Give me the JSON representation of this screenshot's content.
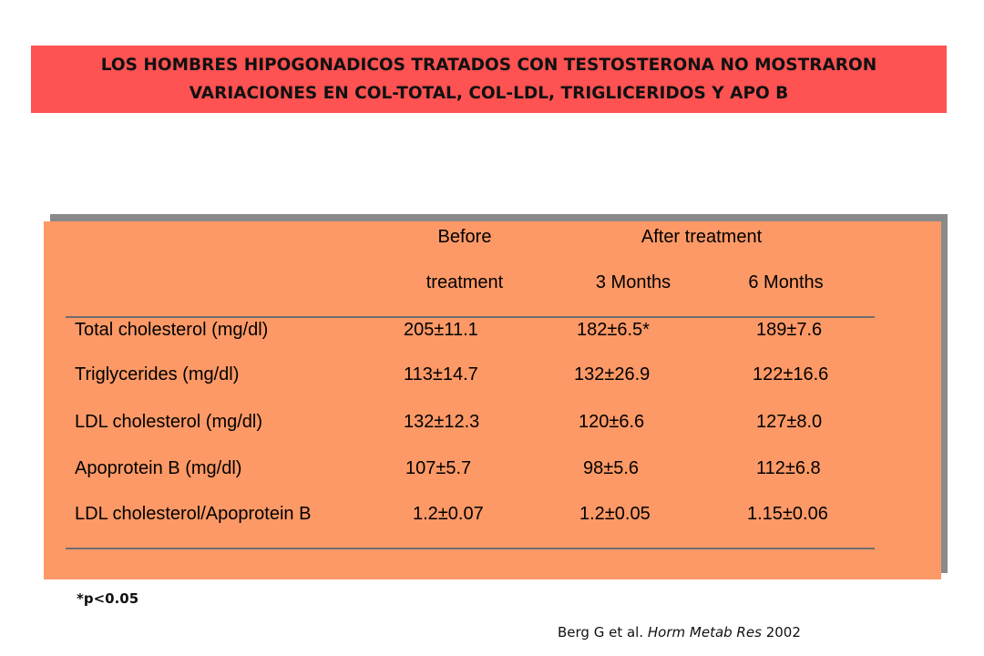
{
  "banner": {
    "line1": "LOS HOMBRES HIPOGONADICOS TRATADOS CON TESTOSTERONA NO MOSTRARON",
    "line2": "VARIACIONES EN COL-TOTAL,  COL-LDL, TRIGLICERIDOS Y APO B"
  },
  "table": {
    "header": {
      "before_line1": "Before",
      "before_line2": "treatment",
      "after_group": "After treatment",
      "after_3m": "3 Months",
      "after_6m": "6 Months"
    },
    "rows": [
      {
        "label": "Total cholesterol (mg/dl)",
        "before": "205±11.1",
        "m3": "182±6.5*",
        "m6": "189±7.6"
      },
      {
        "label": "Triglycerides (mg/dl)",
        "before": "113±14.7",
        "m3": "132±26.9",
        "m6": "122±16.6"
      },
      {
        "label": "LDL cholesterol (mg/dl)",
        "before": "132±12.3",
        "m3": "120±6.6",
        "m6": "127±8.0"
      },
      {
        "label": "Apoprotein B (mg/dl)",
        "before": "107±5.7",
        "m3": "98±5.6",
        "m6": "112±6.8"
      },
      {
        "label": "LDL cholesterol/Apoprotein B",
        "before": "1.2±0.07",
        "m3": "1.2±0.05",
        "m6": "1.15±0.06"
      }
    ]
  },
  "footnote": "*p<0.05",
  "citation": {
    "authors": "Berg G et al.",
    "journal": "Horm Metab Res",
    "year": "2002"
  },
  "colors": {
    "banner": "#ff5252",
    "panel": "#fd9966",
    "shadow": "#8a8a8a"
  }
}
